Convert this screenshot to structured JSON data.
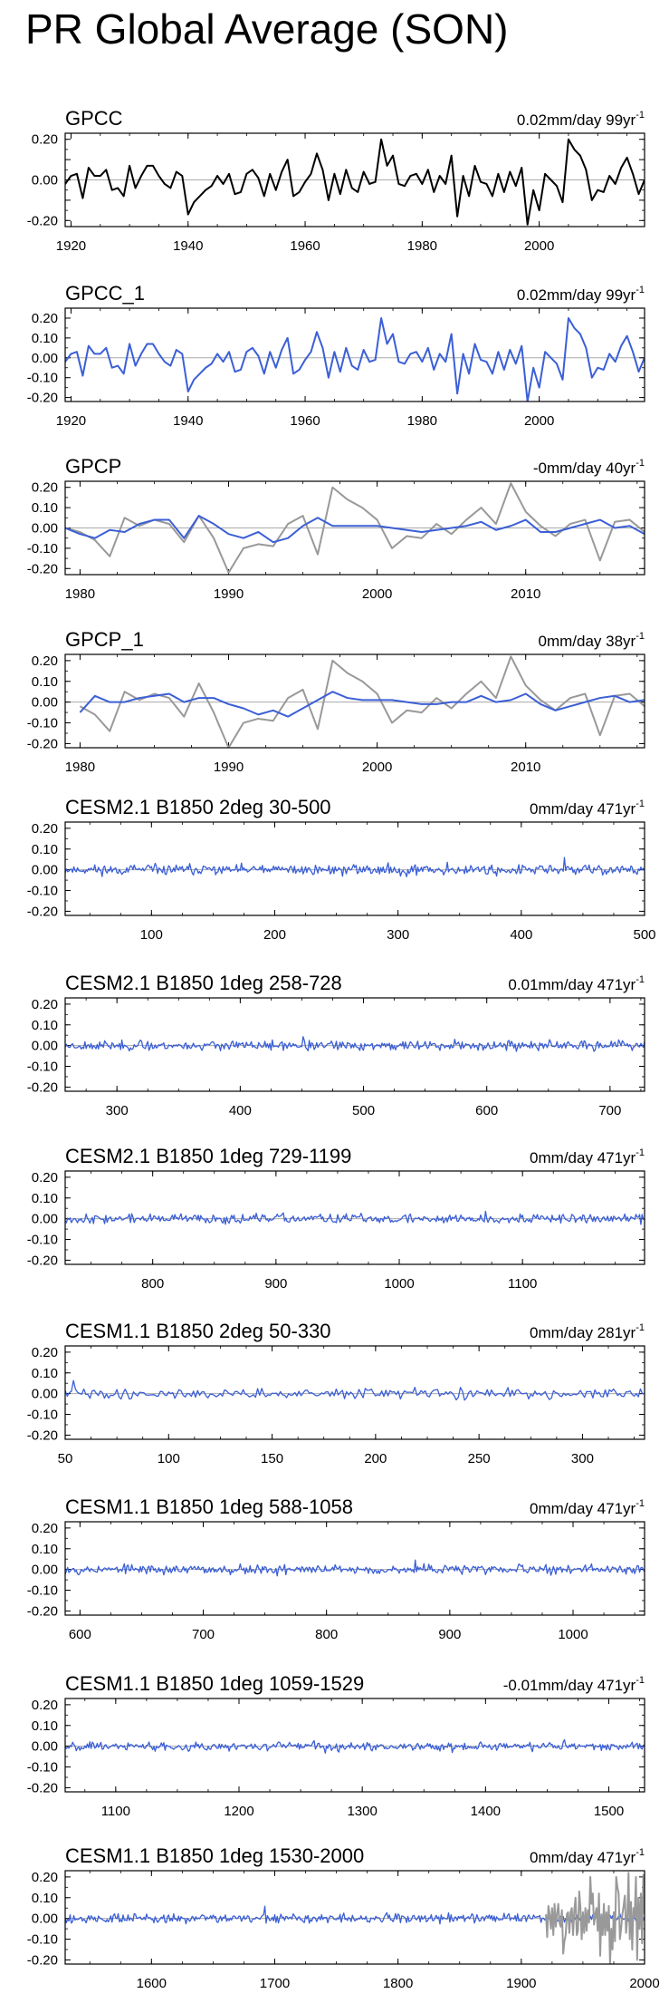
{
  "page": {
    "title": "PR Global Average (SON)"
  },
  "colors": {
    "observed": "#000000",
    "model": "#3b5fd6",
    "reference": "#999999",
    "zero_line": "#aaaaaa"
  },
  "chart_data": [
    {
      "type": "line",
      "title": "GPCC",
      "trend_label": "0.02mm/day 99yr",
      "trend_unit_superscript": "-1",
      "xlim": [
        1919,
        2018
      ],
      "ylim": [
        -0.23,
        0.23
      ],
      "yticks": [
        -0.2,
        -0.1,
        0.0,
        0.1,
        0.2
      ],
      "ytick_labels": [
        "-0.20",
        "",
        "0.00",
        "",
        "0.20"
      ],
      "xticks": [
        1920,
        1940,
        1960,
        1980,
        2000
      ],
      "xtick_labels": [
        "1920",
        "1940",
        "1960",
        "1980",
        "2000"
      ],
      "series": [
        {
          "color": "#000000",
          "x_start": 1919,
          "x_step": 1,
          "values": [
            -0.02,
            0.02,
            0.03,
            -0.09,
            0.06,
            0.02,
            0.02,
            0.05,
            -0.05,
            -0.04,
            -0.08,
            0.07,
            -0.04,
            0.02,
            0.07,
            0.07,
            0.02,
            -0.02,
            -0.04,
            0.04,
            0.02,
            -0.17,
            -0.11,
            -0.08,
            -0.05,
            -0.03,
            0.02,
            -0.02,
            0.03,
            -0.07,
            -0.06,
            0.03,
            0.05,
            0.01,
            -0.08,
            0.03,
            -0.05,
            0.04,
            0.1,
            -0.08,
            -0.06,
            -0.01,
            0.03,
            0.13,
            0.05,
            -0.1,
            0.03,
            -0.07,
            0.05,
            -0.04,
            -0.06,
            0.04,
            -0.02,
            -0.01,
            0.2,
            0.07,
            0.12,
            -0.02,
            -0.03,
            0.02,
            0.03,
            -0.02,
            0.05,
            -0.06,
            0.02,
            -0.02,
            0.12,
            -0.18,
            0.02,
            -0.08,
            0.07,
            -0.01,
            -0.02,
            -0.08,
            0.03,
            -0.06,
            0.04,
            -0.03,
            0.06,
            -0.22,
            -0.05,
            -0.15,
            0.03,
            0.0,
            -0.03,
            -0.11,
            0.2,
            0.15,
            0.12,
            0.05,
            -0.1,
            -0.05,
            -0.06,
            0.02,
            -0.02,
            0.06,
            0.11,
            0.03,
            -0.07,
            0.0
          ]
        }
      ]
    },
    {
      "type": "line",
      "title": "GPCC_1",
      "trend_label": "0.02mm/day 99yr",
      "trend_unit_superscript": "-1",
      "xlim": [
        1919,
        2018
      ],
      "ylim": [
        -0.22,
        0.25
      ],
      "yticks": [
        -0.2,
        -0.1,
        0.0,
        0.1,
        0.2
      ],
      "ytick_labels": [
        "-0.20",
        "-0.10",
        "0.00",
        "0.10",
        "0.20"
      ],
      "xticks": [
        1920,
        1940,
        1960,
        1980,
        2000
      ],
      "xtick_labels": [
        "1920",
        "1940",
        "1960",
        "1980",
        "2000"
      ],
      "series": [
        {
          "color": "#3b5fd6",
          "x_start": 1919,
          "x_step": 1,
          "values": [
            -0.02,
            0.02,
            0.03,
            -0.09,
            0.06,
            0.02,
            0.02,
            0.05,
            -0.05,
            -0.04,
            -0.08,
            0.07,
            -0.04,
            0.02,
            0.07,
            0.07,
            0.02,
            -0.02,
            -0.04,
            0.04,
            0.02,
            -0.17,
            -0.11,
            -0.08,
            -0.05,
            -0.03,
            0.02,
            -0.02,
            0.03,
            -0.07,
            -0.06,
            0.03,
            0.05,
            0.01,
            -0.08,
            0.03,
            -0.05,
            0.04,
            0.1,
            -0.08,
            -0.06,
            -0.01,
            0.03,
            0.13,
            0.05,
            -0.1,
            0.03,
            -0.07,
            0.05,
            -0.04,
            -0.06,
            0.04,
            -0.02,
            -0.01,
            0.2,
            0.07,
            0.12,
            -0.02,
            -0.03,
            0.02,
            0.03,
            -0.02,
            0.05,
            -0.06,
            0.02,
            -0.02,
            0.12,
            -0.18,
            0.02,
            -0.08,
            0.07,
            -0.01,
            -0.02,
            -0.08,
            0.03,
            -0.06,
            0.04,
            -0.03,
            0.06,
            -0.22,
            -0.05,
            -0.15,
            0.03,
            0.0,
            -0.03,
            -0.11,
            0.2,
            0.15,
            0.12,
            0.05,
            -0.1,
            -0.05,
            -0.06,
            0.02,
            -0.02,
            0.06,
            0.11,
            0.03,
            -0.07,
            0.0
          ]
        }
      ]
    },
    {
      "type": "line",
      "title": "GPCP",
      "trend_label": "-0mm/day 40yr",
      "trend_unit_superscript": "-1",
      "xlim": [
        1979,
        2018
      ],
      "ylim": [
        -0.23,
        0.23
      ],
      "yticks": [
        -0.2,
        -0.1,
        0.0,
        0.1,
        0.2
      ],
      "ytick_labels": [
        "-0.20",
        "-0.10",
        "0.00",
        "0.10",
        "0.20"
      ],
      "xticks": [
        1980,
        1990,
        2000,
        2010
      ],
      "xtick_labels": [
        "1980",
        "1990",
        "2000",
        "2010"
      ],
      "series": [
        {
          "color": "#999999",
          "x_start": 1979,
          "x_step": 1,
          "values": [
            0.0,
            -0.02,
            -0.06,
            -0.14,
            0.05,
            0.01,
            0.04,
            0.02,
            -0.07,
            0.06,
            -0.05,
            -0.22,
            -0.1,
            -0.08,
            -0.09,
            0.02,
            0.06,
            -0.13,
            0.2,
            0.14,
            0.1,
            0.04,
            -0.1,
            -0.04,
            -0.05,
            0.02,
            -0.03,
            0.04,
            0.1,
            0.02,
            0.22,
            0.08,
            0.01,
            -0.04,
            0.02,
            0.04,
            -0.16,
            0.03,
            0.04,
            -0.02
          ]
        },
        {
          "color": "#3b5fd6",
          "x_start": 1979,
          "x_step": 1,
          "values": [
            0.0,
            -0.03,
            -0.05,
            -0.01,
            -0.02,
            0.02,
            0.04,
            0.04,
            -0.05,
            0.06,
            0.02,
            -0.03,
            -0.05,
            -0.02,
            -0.07,
            -0.05,
            0.01,
            0.05,
            0.01,
            0.01,
            0.01,
            0.01,
            0.0,
            -0.01,
            -0.02,
            -0.01,
            0.0,
            0.01,
            0.03,
            -0.01,
            0.01,
            0.04,
            -0.02,
            -0.02,
            0.0,
            0.02,
            0.04,
            0.0,
            0.01,
            -0.03
          ]
        }
      ]
    },
    {
      "type": "line",
      "title": "GPCP_1",
      "trend_label": "0mm/day 38yr",
      "trend_unit_superscript": "-1",
      "xlim": [
        1979,
        2018
      ],
      "ylim": [
        -0.22,
        0.23
      ],
      "yticks": [
        -0.2,
        -0.1,
        0.0,
        0.1,
        0.2
      ],
      "ytick_labels": [
        "-0.20",
        "-0.10",
        "0.00",
        "0.10",
        "0.20"
      ],
      "xticks": [
        1980,
        1990,
        2000,
        2010
      ],
      "xtick_labels": [
        "1980",
        "1990",
        "2000",
        "2010"
      ],
      "series": [
        {
          "color": "#999999",
          "x_start": 1980,
          "x_step": 1,
          "values": [
            -0.02,
            -0.06,
            -0.14,
            0.05,
            0.01,
            0.04,
            0.02,
            -0.07,
            0.09,
            -0.05,
            -0.22,
            -0.1,
            -0.08,
            -0.09,
            0.02,
            0.06,
            -0.13,
            0.2,
            0.14,
            0.1,
            0.04,
            -0.1,
            -0.04,
            -0.05,
            0.02,
            -0.03,
            0.04,
            0.1,
            0.02,
            0.22,
            0.08,
            0.01,
            -0.04,
            0.02,
            0.04,
            -0.16,
            0.03,
            0.04,
            -0.02
          ]
        },
        {
          "color": "#3b5fd6",
          "x_start": 1980,
          "x_step": 1,
          "values": [
            -0.05,
            0.03,
            0.0,
            0.0,
            0.02,
            0.03,
            0.04,
            0.0,
            0.02,
            0.02,
            -0.01,
            -0.03,
            -0.06,
            -0.04,
            -0.07,
            -0.03,
            0.01,
            0.05,
            0.02,
            0.01,
            0.01,
            0.01,
            0.0,
            -0.01,
            -0.01,
            0.0,
            0.0,
            0.03,
            0.0,
            0.01,
            0.04,
            -0.01,
            -0.04,
            -0.02,
            0.0,
            0.02,
            0.03,
            0.0,
            0.01
          ]
        }
      ]
    },
    {
      "type": "line",
      "title": "CESM2.1 B1850 2deg 30-500",
      "trend_label": "0mm/day 471yr",
      "trend_unit_superscript": "-1",
      "xlim": [
        30,
        500
      ],
      "ylim": [
        -0.22,
        0.23
      ],
      "yticks": [
        -0.2,
        -0.1,
        0.0,
        0.1,
        0.2
      ],
      "ytick_labels": [
        "-0.20",
        "-0.10",
        "0.00",
        "0.10",
        "0.20"
      ],
      "xticks": [
        100,
        200,
        300,
        400,
        500
      ],
      "xtick_labels": [
        "100",
        "200",
        "300",
        "400",
        "500"
      ],
      "series": [
        {
          "color": "#3b5fd6",
          "x_start": 30,
          "x_step": 1,
          "n": 471,
          "noise_amplitude": 0.012,
          "seed": 11
        }
      ]
    },
    {
      "type": "line",
      "title": "CESM2.1 B1850 1deg 258-728",
      "trend_label": "0.01mm/day 471yr",
      "trend_unit_superscript": "-1",
      "xlim": [
        258,
        728
      ],
      "ylim": [
        -0.22,
        0.23
      ],
      "yticks": [
        -0.2,
        -0.1,
        0.0,
        0.1,
        0.2
      ],
      "ytick_labels": [
        "-0.20",
        "-0.10",
        "0.00",
        "0.10",
        "0.20"
      ],
      "xticks": [
        300,
        400,
        500,
        600,
        700
      ],
      "xtick_labels": [
        "300",
        "400",
        "500",
        "600",
        "700"
      ],
      "series": [
        {
          "color": "#3b5fd6",
          "x_start": 258,
          "x_step": 1,
          "n": 471,
          "noise_amplitude": 0.011,
          "seed": 23
        }
      ]
    },
    {
      "type": "line",
      "title": "CESM2.1 B1850 1deg 729-1199",
      "trend_label": "0mm/day 471yr",
      "trend_unit_superscript": "-1",
      "xlim": [
        729,
        1199
      ],
      "ylim": [
        -0.22,
        0.23
      ],
      "yticks": [
        -0.2,
        -0.1,
        0.0,
        0.1,
        0.2
      ],
      "ytick_labels": [
        "-0.20",
        "-0.10",
        "0.00",
        "0.10",
        "0.20"
      ],
      "xticks": [
        800,
        900,
        1000,
        1100
      ],
      "xtick_labels": [
        "800",
        "900",
        "1000",
        "1100"
      ],
      "series": [
        {
          "color": "#3b5fd6",
          "x_start": 729,
          "x_step": 1,
          "n": 471,
          "noise_amplitude": 0.011,
          "seed": 37
        }
      ]
    },
    {
      "type": "line",
      "title": "CESM1.1 B1850 2deg 50-330",
      "trend_label": "0mm/day 281yr",
      "trend_unit_superscript": "-1",
      "xlim": [
        50,
        330
      ],
      "ylim": [
        -0.22,
        0.23
      ],
      "yticks": [
        -0.2,
        -0.1,
        0.0,
        0.1,
        0.2
      ],
      "ytick_labels": [
        "-0.20",
        "-0.10",
        "0.00",
        "0.10",
        "0.20"
      ],
      "xticks": [
        50,
        100,
        150,
        200,
        250,
        300
      ],
      "xtick_labels": [
        "50",
        "100",
        "150",
        "200",
        "250",
        "300"
      ],
      "series": [
        {
          "color": "#3b5fd6",
          "x_start": 50,
          "x_step": 1,
          "n": 281,
          "noise_amplitude": 0.012,
          "seed": 41
        }
      ]
    },
    {
      "type": "line",
      "title": "CESM1.1 B1850 1deg 588-1058",
      "trend_label": "0mm/day 471yr",
      "trend_unit_superscript": "-1",
      "xlim": [
        588,
        1058
      ],
      "ylim": [
        -0.22,
        0.23
      ],
      "yticks": [
        -0.2,
        -0.1,
        0.0,
        0.1,
        0.2
      ],
      "ytick_labels": [
        "-0.20",
        "-0.10",
        "0.00",
        "0.10",
        "0.20"
      ],
      "xticks": [
        600,
        700,
        800,
        900,
        1000
      ],
      "xtick_labels": [
        "600",
        "700",
        "800",
        "900",
        "1000"
      ],
      "series": [
        {
          "color": "#3b5fd6",
          "x_start": 588,
          "x_step": 1,
          "n": 471,
          "noise_amplitude": 0.011,
          "seed": 53
        }
      ]
    },
    {
      "type": "line",
      "title": "CESM1.1 B1850 1deg 1059-1529",
      "trend_label": "-0.01mm/day 471yr",
      "trend_unit_superscript": "-1",
      "xlim": [
        1059,
        1529
      ],
      "ylim": [
        -0.22,
        0.23
      ],
      "yticks": [
        -0.2,
        -0.1,
        0.0,
        0.1,
        0.2
      ],
      "ytick_labels": [
        "-0.20",
        "-0.10",
        "0.00",
        "0.10",
        "0.20"
      ],
      "xticks": [
        1100,
        1200,
        1300,
        1400,
        1500
      ],
      "xtick_labels": [
        "1100",
        "1200",
        "1300",
        "1400",
        "1500"
      ],
      "series": [
        {
          "color": "#3b5fd6",
          "x_start": 1059,
          "x_step": 1,
          "n": 471,
          "noise_amplitude": 0.01,
          "seed": 67
        }
      ]
    },
    {
      "type": "line",
      "title": "CESM1.1 B1850 1deg 1530-2000",
      "trend_label": "0mm/day 471yr",
      "trend_unit_superscript": "-1",
      "xlim": [
        1530,
        2000
      ],
      "ylim": [
        -0.22,
        0.23
      ],
      "yticks": [
        -0.2,
        -0.1,
        0.0,
        0.1,
        0.2
      ],
      "ytick_labels": [
        "-0.20",
        "-0.10",
        "0.00",
        "0.10",
        "0.20"
      ],
      "xticks": [
        1600,
        1700,
        1800,
        1900,
        2000
      ],
      "xtick_labels": [
        "1600",
        "1700",
        "1800",
        "1900",
        "2000"
      ],
      "series": [
        {
          "color": "#3b5fd6",
          "x_start": 1530,
          "x_step": 1,
          "n": 471,
          "noise_amplitude": 0.011,
          "seed": 79
        },
        {
          "color": "#999999",
          "x_start": 1920,
          "x_step": 1,
          "values": [
            0.02,
            -0.09,
            0.06,
            0.02,
            -0.05,
            0.05,
            -0.08,
            0.07,
            -0.04,
            0.02,
            0.07,
            -0.02,
            -0.04,
            0.04,
            -0.17,
            -0.11,
            -0.08,
            0.02,
            0.03,
            -0.07,
            0.03,
            0.05,
            -0.08,
            0.04,
            0.1,
            -0.08,
            -0.06,
            0.13,
            0.05,
            -0.1,
            0.03,
            -0.07,
            0.05,
            -0.06,
            0.04,
            -0.02,
            0.2,
            0.07,
            0.12,
            -0.03,
            0.02,
            0.05,
            -0.06,
            0.12,
            -0.18,
            0.02,
            -0.08,
            0.07,
            -0.08,
            0.03,
            -0.06,
            0.06,
            -0.22,
            -0.05,
            -0.15,
            0.03,
            -0.11,
            0.2,
            0.15,
            0.12,
            -0.1,
            -0.05,
            0.02,
            0.06,
            0.11,
            -0.07,
            0.0,
            0.22,
            -0.1,
            0.08,
            -0.15,
            0.05,
            0.01,
            0.2,
            -0.2,
            0.1,
            -0.05,
            0.12,
            -0.12,
            0.21,
            0.02
          ]
        }
      ]
    }
  ]
}
